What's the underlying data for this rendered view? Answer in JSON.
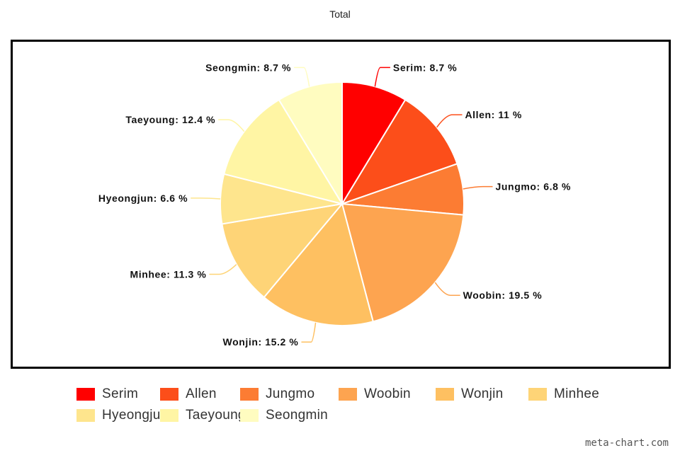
{
  "chart_data": {
    "type": "pie",
    "title": "Total",
    "label_suffix": " %",
    "slices": [
      {
        "name": "Serim",
        "value": 8.7,
        "color": "#ff0000",
        "label": "Serim: 8.7 %"
      },
      {
        "name": "Allen",
        "value": 11,
        "color": "#fc4e1a",
        "label": "Allen: 11 %"
      },
      {
        "name": "Jungmo",
        "value": 6.8,
        "color": "#fc7c33",
        "label": "Jungmo: 6.8 %"
      },
      {
        "name": "Woobin",
        "value": 19.5,
        "color": "#fda450",
        "label": "Woobin: 19.5 %"
      },
      {
        "name": "Wonjin",
        "value": 15.2,
        "color": "#fec061",
        "label": "Wonjin: 15.2 %"
      },
      {
        "name": "Minhee",
        "value": 11.3,
        "color": "#fed477",
        "label": "Minhee: 11.3 %"
      },
      {
        "name": "Hyeongjun",
        "value": 6.6,
        "color": "#fee58d",
        "label": "Hyeongjun: 6.6 %"
      },
      {
        "name": "Taeyoung",
        "value": 12.4,
        "color": "#fff5a4",
        "label": "Taeyoung: 12.4 %"
      },
      {
        "name": "Seongmin",
        "value": 8.7,
        "color": "#fffcc0",
        "label": "Seongmin: 8.7 %"
      }
    ],
    "legend_position": "bottom"
  },
  "watermark": "meta-chart.com"
}
